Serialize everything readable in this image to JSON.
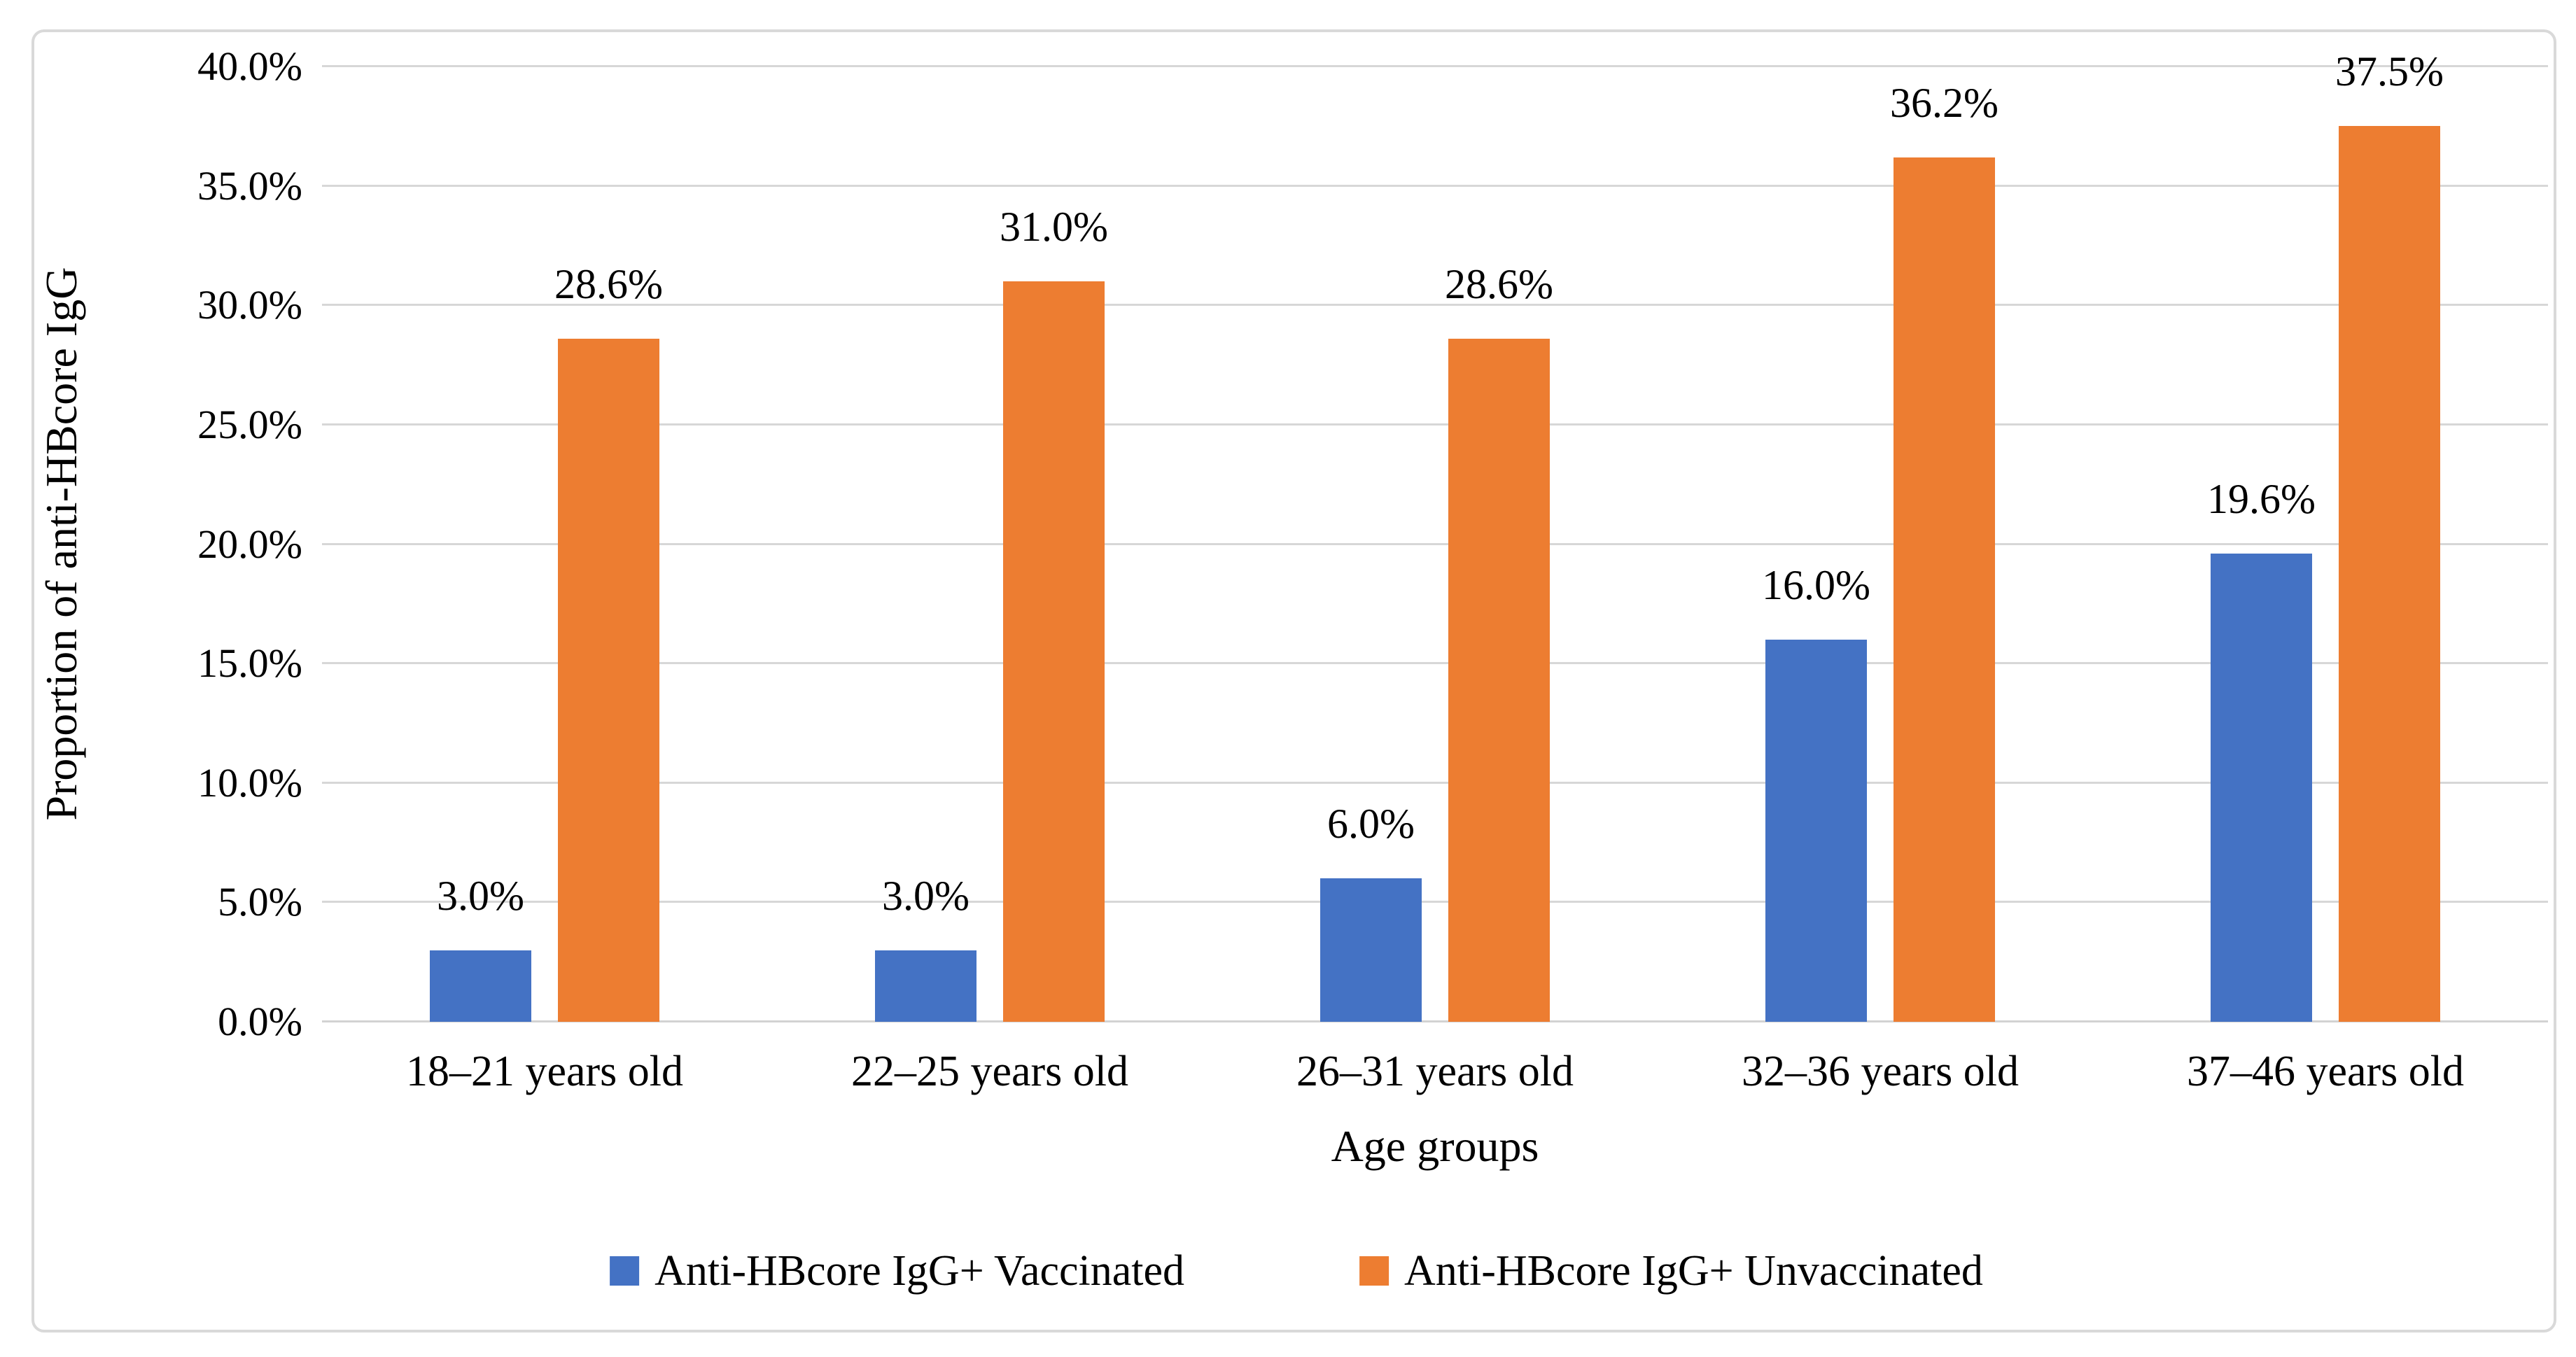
{
  "chart_data": {
    "type": "bar",
    "title": "",
    "xlabel": "Age groups",
    "ylabel": "Proportion of anti-HBcore IgG",
    "categories": [
      "18–21 years old",
      "22–25 years old",
      "26–31 years old",
      "32–36 years old",
      "37–46 years old"
    ],
    "series": [
      {
        "name": "Anti-HBcore IgG+ Vaccinated",
        "color": "#4472C4",
        "values": [
          3.0,
          3.0,
          6.0,
          16.0,
          19.6
        ],
        "labels": [
          "3.0%",
          "3.0%",
          "6.0%",
          "16.0%",
          "19.6%"
        ]
      },
      {
        "name": "Anti-HBcore IgG+ Unvaccinated",
        "color": "#ED7D31",
        "values": [
          28.6,
          31.0,
          28.6,
          36.2,
          37.5
        ],
        "labels": [
          "28.6%",
          "31.0%",
          "28.6%",
          "36.2%",
          "37.5%"
        ]
      }
    ],
    "ylim": [
      0,
      40
    ],
    "y_tick_values": [
      0,
      5,
      10,
      15,
      20,
      25,
      30,
      35,
      40
    ],
    "y_tick_labels": [
      "0.0%",
      "5.0%",
      "10.0%",
      "15.0%",
      "20.0%",
      "25.0%",
      "30.0%",
      "35.0%",
      "40.0%"
    ],
    "grid": true,
    "legend_position": "bottom",
    "colors": {
      "gridline": "#D7D7D7",
      "frame_border": "#D9D9D9",
      "text": "#000000",
      "background": "#FFFFFF"
    }
  }
}
